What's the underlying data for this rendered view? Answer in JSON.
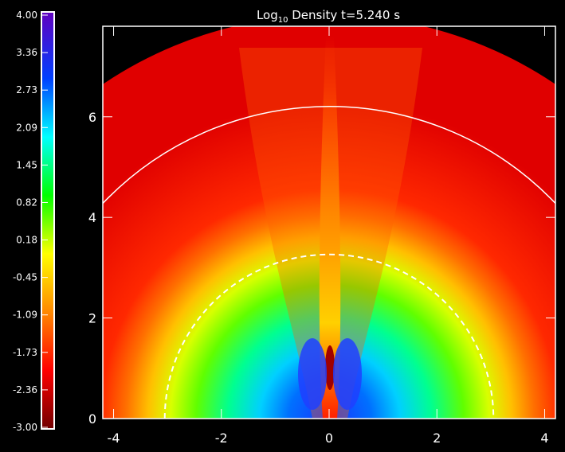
{
  "chart_data": {
    "type": "heatmap",
    "title": {
      "prefix": "Log",
      "subscript": "10",
      "suffix": " Density  t=5.240 s"
    },
    "xlabel": "",
    "ylabel": "",
    "x_ticks": [
      "-4",
      "-2",
      "0",
      "2",
      "4"
    ],
    "x_tick_values": [
      -4,
      -2,
      0,
      2,
      4
    ],
    "y_ticks": [
      "0",
      "2",
      "4",
      "6"
    ],
    "y_tick_values": [
      0,
      2,
      4,
      6
    ],
    "xlim": [
      -4.2,
      4.2
    ],
    "ylim": [
      0,
      7.8
    ],
    "colorbar": {
      "range": [
        -3.0,
        4.0
      ],
      "labels": [
        "4.00",
        "3.36",
        "2.73",
        "2.09",
        "1.45",
        "0.82",
        "0.18",
        "-0.45",
        "-1.09",
        "-1.73",
        "-2.36",
        "-3.00"
      ],
      "colormap": [
        "#700000",
        "#ff0000",
        "#ff8800",
        "#ffff00",
        "#00ff00",
        "#00ffff",
        "#0040ff",
        "#6000c0"
      ]
    },
    "contours": [
      {
        "radius": 5.8,
        "style": "solid",
        "color": "#ffffff"
      },
      {
        "radius": 3.05,
        "style": "dashed",
        "color": "#ffffff"
      }
    ],
    "data_extent_radius": 7.5
  }
}
